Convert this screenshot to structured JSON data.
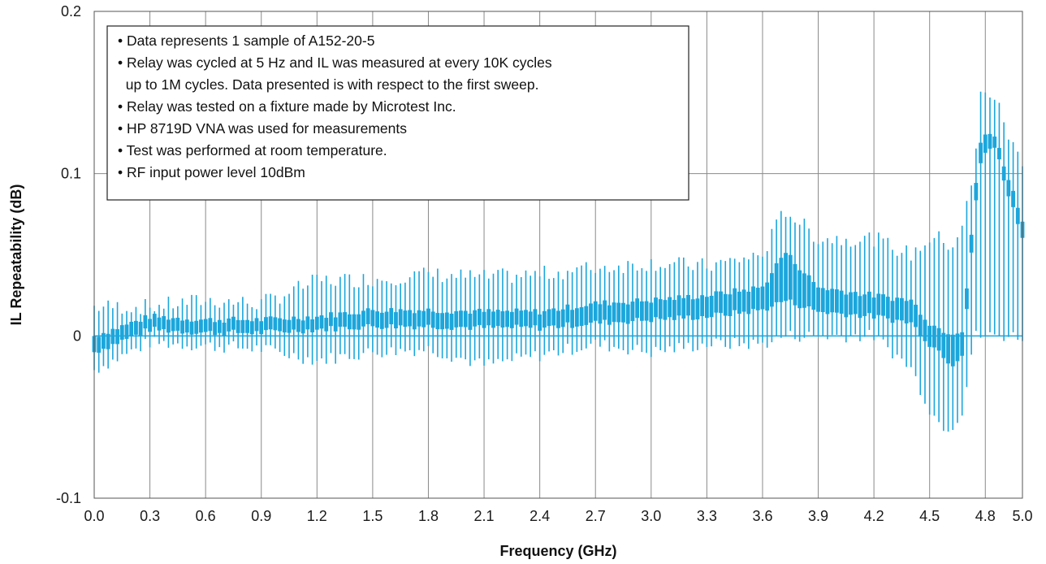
{
  "chart_data": {
    "type": "box",
    "title": "",
    "xlabel": "Frequency (GHz)",
    "ylabel": "IL Repeatability (dB)",
    "xlim": [
      0.0,
      5.0
    ],
    "ylim": [
      -0.1,
      0.2
    ],
    "x_ticks": [
      "0.0",
      "0.3",
      "0.6",
      "0.9",
      "1.2",
      "1.5",
      "1.8",
      "2.1",
      "2.4",
      "2.7",
      "3.0",
      "3.3",
      "3.6",
      "3.9",
      "4.2",
      "4.5",
      "4.8",
      "5.0"
    ],
    "y_ticks": [
      "-0.1",
      "0",
      "0.1",
      "0.2"
    ],
    "grid": true,
    "series_color": "#1ba6dc",
    "zero_line_color": "#1ba6dc",
    "annotation_lines": [
      "• Data represents 1 sample of A152-20-5",
      "• Relay was cycled at 5 Hz and IL was measured at every 10K cycles",
      "  up to 1M cycles. Data presented is with respect to the first sweep.",
      "• Relay was tested on a fixture made by Microtest Inc.",
      "• HP 8719D VNA was used for measurements",
      "• Test was performed at room temperature.",
      "• RF input power level 10dBm"
    ],
    "series": [
      {
        "x": [
          0.0,
          0.3,
          0.6,
          0.9,
          1.2,
          1.5,
          1.8,
          2.1,
          2.4,
          2.7,
          3.0,
          3.3,
          3.6,
          3.72,
          3.9,
          4.2,
          4.4,
          4.5,
          4.56,
          4.62,
          4.68,
          4.74,
          4.78,
          4.86,
          4.92,
          5.0
        ],
        "whisker_low": [
          -0.021,
          -0.004,
          -0.006,
          -0.008,
          -0.015,
          -0.01,
          -0.008,
          -0.018,
          -0.012,
          -0.005,
          -0.01,
          -0.005,
          -0.005,
          0.0,
          0.0,
          0.0,
          -0.02,
          -0.045,
          -0.055,
          -0.056,
          -0.045,
          0.0,
          0.0,
          0.0,
          0.0,
          0.0
        ],
        "q1": [
          -0.01,
          0.004,
          0.002,
          0.002,
          0.004,
          0.006,
          0.006,
          0.005,
          0.005,
          0.008,
          0.01,
          0.012,
          0.016,
          0.022,
          0.015,
          0.012,
          0.008,
          -0.005,
          -0.01,
          -0.018,
          -0.01,
          0.072,
          0.112,
          0.116,
          0.088,
          0.062
        ],
        "q3": [
          0.0,
          0.012,
          0.01,
          0.01,
          0.012,
          0.016,
          0.016,
          0.015,
          0.015,
          0.02,
          0.022,
          0.025,
          0.03,
          0.052,
          0.03,
          0.025,
          0.022,
          0.008,
          0.004,
          0.002,
          0.004,
          0.082,
          0.125,
          0.122,
          0.098,
          0.072
        ],
        "whisker_high": [
          0.018,
          0.018,
          0.022,
          0.02,
          0.034,
          0.035,
          0.038,
          0.036,
          0.038,
          0.042,
          0.045,
          0.043,
          0.05,
          0.078,
          0.06,
          0.06,
          0.05,
          0.06,
          0.06,
          0.055,
          0.07,
          0.1,
          0.155,
          0.145,
          0.125,
          0.105
        ]
      }
    ]
  }
}
